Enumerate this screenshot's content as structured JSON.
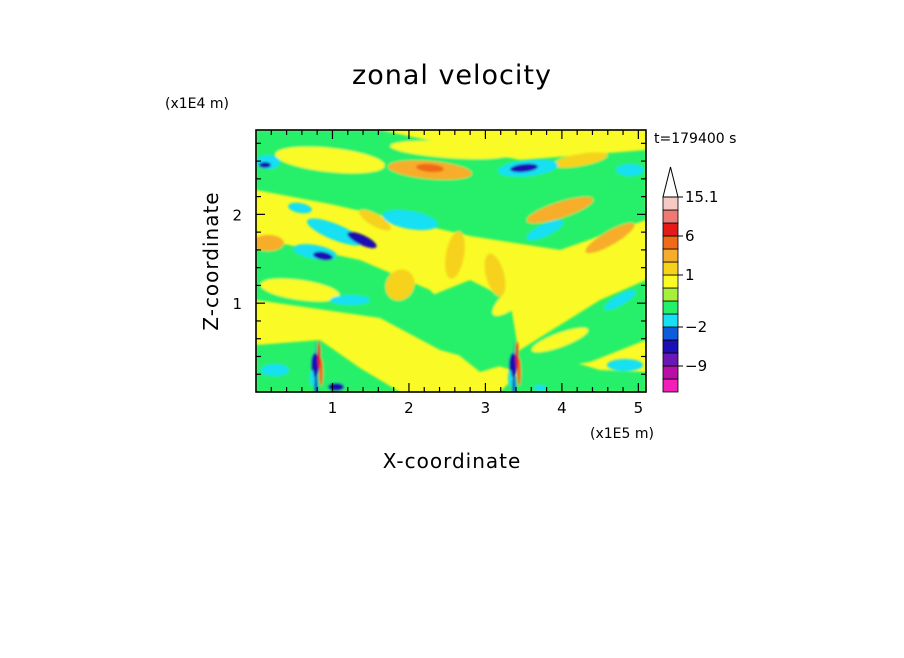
{
  "chart_data": {
    "type": "heatmap",
    "title": "zonal velocity",
    "xlabel": "X-coordinate",
    "ylabel": "Z-coordinate",
    "x_unit": "(x1E5 m)",
    "y_unit": "(x1E4 m)",
    "time_label": "t=179400 s",
    "xlim": [
      0,
      5.1
    ],
    "ylim": [
      0,
      2.95
    ],
    "x_ticks": [
      1,
      2,
      3,
      4,
      5
    ],
    "x_tick_labels": [
      "1",
      "2",
      "3",
      "4",
      "5"
    ],
    "y_ticks": [
      1,
      2
    ],
    "y_tick_labels": [
      "1",
      "2"
    ],
    "colorbar": {
      "levels": [
        -15,
        -12,
        -9,
        -6,
        -4,
        -2,
        -1,
        0,
        0.5,
        1,
        2,
        4,
        6,
        9,
        12,
        15.1
      ],
      "colors": [
        "#f21fb8",
        "#b80fa6",
        "#6a18b5",
        "#1a10b3",
        "#0c5cdc",
        "#17e0f2",
        "#26f06a",
        "#a6f03a",
        "#fafa26",
        "#f6d21a",
        "#f7ad2c",
        "#ef6b15",
        "#e31b1b",
        "#f07a73",
        "#f7c9c4"
      ],
      "labels": [
        "15.1",
        "6",
        "1",
        "−2",
        "−9"
      ],
      "label_values": [
        15.1,
        6,
        1,
        -2,
        -9
      ],
      "extend": "max"
    }
  }
}
